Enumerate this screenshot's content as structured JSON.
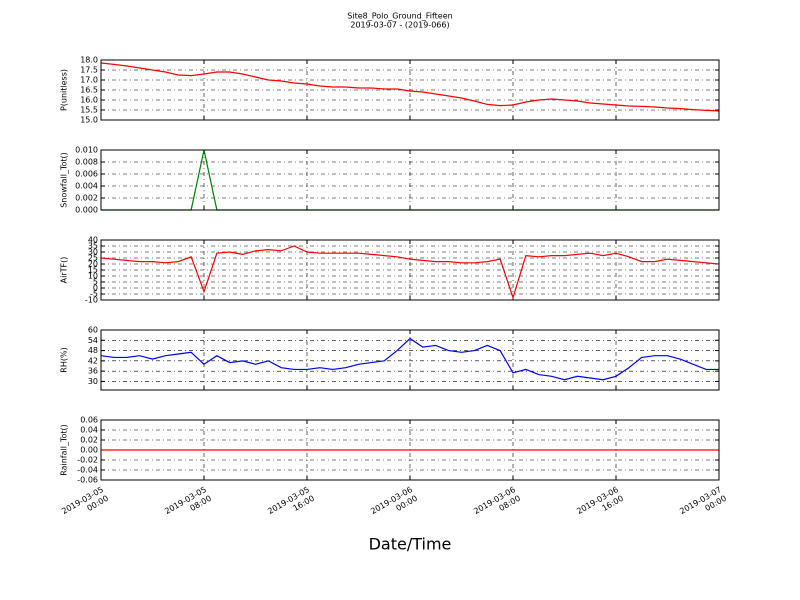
{
  "title": "Site8_Polo_Ground_Fifteen",
  "subtitle": "2019-03-07 - (2019-066)",
  "chart_data": {
    "type": "line",
    "xlabel": "Date/Time",
    "xlim": [
      "2019-03-05 00:00",
      "2019-03-07 00:00"
    ],
    "xticks": [
      {
        "value": "2019-03-05 00:00",
        "label": "2019-03-05\n00:00"
      },
      {
        "value": "2019-03-05 08:00",
        "label": "2019-03-05\n08:00"
      },
      {
        "value": "2019-03-05 16:00",
        "label": "2019-03-05\n16:00"
      },
      {
        "value": "2019-03-06 00:00",
        "label": "2019-03-06\n00:00"
      },
      {
        "value": "2019-03-06 08:00",
        "label": "2019-03-06\n08:00"
      },
      {
        "value": "2019-03-06 16:00",
        "label": "2019-03-06\n16:00"
      },
      {
        "value": "2019-03-07 00:00",
        "label": "2019-03-07\n00:00"
      }
    ],
    "grid": true,
    "x": [
      "2019-03-05 00:00",
      "2019-03-05 01:00",
      "2019-03-05 02:00",
      "2019-03-05 03:00",
      "2019-03-05 04:00",
      "2019-03-05 05:00",
      "2019-03-05 06:00",
      "2019-03-05 07:00",
      "2019-03-05 08:00",
      "2019-03-05 09:00",
      "2019-03-05 10:00",
      "2019-03-05 11:00",
      "2019-03-05 12:00",
      "2019-03-05 13:00",
      "2019-03-05 14:00",
      "2019-03-05 15:00",
      "2019-03-05 16:00",
      "2019-03-05 17:00",
      "2019-03-05 18:00",
      "2019-03-05 19:00",
      "2019-03-05 20:00",
      "2019-03-05 21:00",
      "2019-03-05 22:00",
      "2019-03-05 23:00",
      "2019-03-06 00:00",
      "2019-03-06 01:00",
      "2019-03-06 02:00",
      "2019-03-06 03:00",
      "2019-03-06 04:00",
      "2019-03-06 05:00",
      "2019-03-06 06:00",
      "2019-03-06 07:00",
      "2019-03-06 08:00",
      "2019-03-06 09:00",
      "2019-03-06 10:00",
      "2019-03-06 11:00",
      "2019-03-06 12:00",
      "2019-03-06 13:00",
      "2019-03-06 14:00",
      "2019-03-06 15:00",
      "2019-03-06 16:00",
      "2019-03-06 17:00",
      "2019-03-06 18:00",
      "2019-03-06 19:00",
      "2019-03-06 20:00",
      "2019-03-06 21:00",
      "2019-03-06 22:00",
      "2019-03-06 23:00",
      "2019-03-07 00:00"
    ],
    "subplots": [
      {
        "ylabel": "P(unitless)",
        "ylim": [
          15,
          18
        ],
        "yticks": [
          {
            "value": 15,
            "label": "15.0"
          },
          {
            "value": 15.5,
            "label": "15.5"
          },
          {
            "value": 16,
            "label": "16.0"
          },
          {
            "value": 16.5,
            "label": "16.5"
          },
          {
            "value": 17,
            "label": "17.0"
          },
          {
            "value": 17.5,
            "label": "17.5"
          },
          {
            "value": 18,
            "label": "18.0"
          }
        ],
        "series": [
          {
            "color": "#ff0000",
            "values": [
              17.85,
              17.78,
              17.7,
              17.6,
              17.5,
              17.4,
              17.25,
              17.22,
              17.3,
              17.4,
              17.4,
              17.3,
              17.15,
              17.0,
              16.95,
              16.85,
              16.8,
              16.7,
              16.65,
              16.65,
              16.6,
              16.6,
              16.55,
              16.55,
              16.45,
              16.4,
              16.3,
              16.2,
              16.1,
              15.95,
              15.78,
              15.72,
              15.75,
              15.9,
              16.0,
              16.05,
              16.0,
              15.95,
              15.85,
              15.8,
              15.75,
              15.7,
              15.68,
              15.65,
              15.6,
              15.57,
              15.52,
              15.48,
              15.45
            ]
          }
        ]
      },
      {
        "ylabel": "Snowfall_Tot()",
        "ylim": [
          0,
          0.01
        ],
        "yticks": [
          {
            "value": 0,
            "label": "0.000"
          },
          {
            "value": 0.002,
            "label": "0.002"
          },
          {
            "value": 0.004,
            "label": "0.004"
          },
          {
            "value": 0.006,
            "label": "0.006"
          },
          {
            "value": 0.008,
            "label": "0.008"
          },
          {
            "value": 0.01,
            "label": "0.010"
          }
        ],
        "series": [
          {
            "color": "#008000",
            "values": [
              0,
              0,
              0,
              0,
              0,
              0,
              0,
              0,
              0.01,
              0,
              0,
              0,
              0,
              0,
              0,
              0,
              0,
              0,
              0,
              0,
              0,
              0,
              0,
              0,
              0,
              0,
              0,
              0,
              0,
              0,
              0,
              0,
              0,
              0,
              0,
              0,
              0,
              0,
              0,
              0,
              0,
              0,
              0,
              0,
              0,
              0,
              0,
              0,
              0
            ]
          }
        ]
      },
      {
        "ylabel": "AirTF()",
        "ylim": [
          -10,
          40
        ],
        "yticks": [
          -10,
          -5,
          0,
          5,
          10,
          15,
          20,
          25,
          30,
          35,
          40
        ],
        "series": [
          {
            "color": "#ff0000",
            "values": [
              25,
              24,
              23,
              22,
              22,
              21,
              22,
              26,
              -3,
              29,
              30,
              28,
              31,
              32,
              31,
              35,
              30,
              29,
              29,
              29,
              29,
              28,
              27,
              26,
              24,
              23,
              22,
              22,
              21,
              21,
              22,
              24,
              -8,
              27,
              26,
              27,
              27,
              28,
              29,
              27,
              29,
              26,
              22,
              22,
              24,
              23,
              22,
              21,
              20
            ]
          }
        ]
      },
      {
        "ylabel": "RH(%)",
        "ylim": [
          25,
          60
        ],
        "yticks": [
          30,
          36,
          42,
          48,
          54,
          60
        ],
        "series": [
          {
            "color": "#0000ff",
            "values": [
              45,
              44,
              44,
              45,
              43,
              45,
              46,
              47,
              40,
              45,
              41,
              42,
              40,
              42,
              38,
              37,
              37,
              38,
              37,
              38,
              40,
              41,
              42,
              48,
              55,
              50,
              51,
              48,
              47,
              48,
              51,
              48,
              35,
              37,
              34,
              33,
              31,
              33,
              32,
              31,
              33,
              38,
              44,
              45,
              45,
              43,
              40,
              37,
              37
            ]
          }
        ]
      },
      {
        "ylabel": "Rainfall_Tot()",
        "ylim": [
          -0.06,
          0.06
        ],
        "yticks": [
          {
            "value": -0.06,
            "label": "-0.06"
          },
          {
            "value": -0.04,
            "label": "-0.04"
          },
          {
            "value": -0.02,
            "label": "-0.02"
          },
          {
            "value": 0,
            "label": "0.00"
          },
          {
            "value": 0.02,
            "label": "0.02"
          },
          {
            "value": 0.04,
            "label": "0.04"
          },
          {
            "value": 0.06,
            "label": "0.06"
          }
        ],
        "series": [
          {
            "color": "#ff0000",
            "values": [
              0,
              0,
              0,
              0,
              0,
              0,
              0,
              0,
              0,
              0,
              0,
              0,
              0,
              0,
              0,
              0,
              0,
              0,
              0,
              0,
              0,
              0,
              0,
              0,
              0,
              0,
              0,
              0,
              0,
              0,
              0,
              0,
              0,
              0,
              0,
              0,
              0,
              0,
              0,
              0,
              0,
              0,
              0,
              0,
              0,
              0,
              0,
              0,
              0
            ]
          }
        ]
      }
    ]
  }
}
